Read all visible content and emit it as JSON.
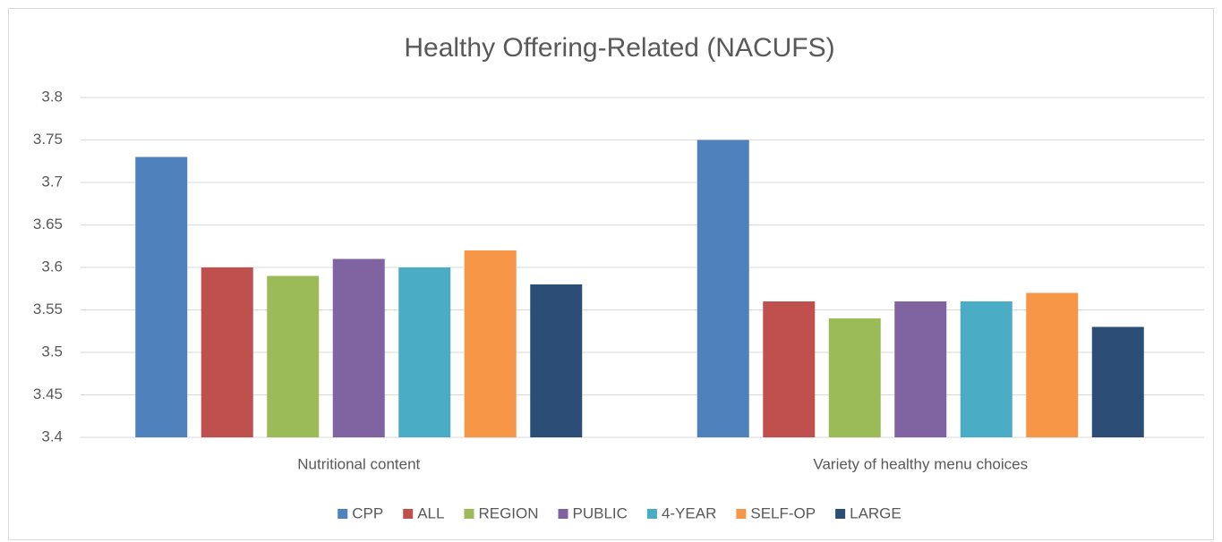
{
  "chart_data": {
    "type": "bar",
    "title": "Healthy Offering-Related (NACUFS)",
    "categories": [
      "Nutritional content",
      "Variety of healthy menu choices"
    ],
    "series": [
      {
        "name": "CPP",
        "color": "#4f81bd",
        "values": [
          3.73,
          3.75
        ]
      },
      {
        "name": "ALL",
        "color": "#c0504d",
        "values": [
          3.6,
          3.56
        ]
      },
      {
        "name": "REGION",
        "color": "#9bbb59",
        "values": [
          3.59,
          3.54
        ]
      },
      {
        "name": "PUBLIC",
        "color": "#8064a2",
        "values": [
          3.61,
          3.56
        ]
      },
      {
        "name": "4-YEAR",
        "color": "#4bacc6",
        "values": [
          3.6,
          3.56
        ]
      },
      {
        "name": "SELF-OP",
        "color": "#f79646",
        "values": [
          3.62,
          3.57
        ]
      },
      {
        "name": "LARGE",
        "color": "#2c4d75",
        "values": [
          3.58,
          3.53
        ]
      }
    ],
    "ylim": [
      3.4,
      3.8
    ],
    "yticks": [
      3.4,
      3.45,
      3.5,
      3.55,
      3.6,
      3.65,
      3.7,
      3.75,
      3.8
    ],
    "grid": true,
    "legend": "bottom"
  }
}
